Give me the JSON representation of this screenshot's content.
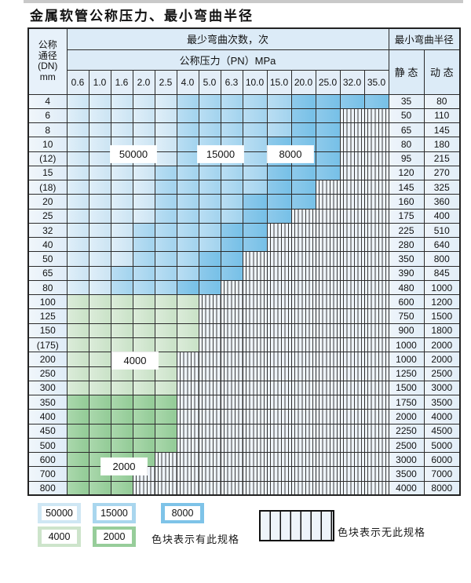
{
  "page": {
    "title": "金属软管公称压力、最小弯曲半径"
  },
  "table": {
    "corner": {
      "line1": "公称",
      "line2": "通径",
      "line3": "(DN)",
      "line4": "mm"
    },
    "bend_header": "最少弯曲次数，次",
    "pressure_header": "公称压力（PN）MPa",
    "radius_header": "最小弯曲半径",
    "static_label": "静 态",
    "dynamic_label": "动 态",
    "pressures": [
      "0.6",
      "1.0",
      "1.6",
      "2.0",
      "2.5",
      "4.0",
      "5.0",
      "6.3",
      "10.0",
      "15.0",
      "20.0",
      "25.0",
      "32.0",
      "35.0"
    ],
    "cell_legend_codes": {
      "L": "50000",
      "M": "15000",
      "D": "8000",
      "G": "4000",
      "H": "2000",
      "X": "no-spec-hatched"
    },
    "rows": [
      {
        "dn": "4",
        "cells": "LLLLLMMMMMDDDD",
        "static": "35",
        "dynamic": "80"
      },
      {
        "dn": "6",
        "cells": "LLLLLMMMMMDDXX",
        "static": "50",
        "dynamic": "110"
      },
      {
        "dn": "8",
        "cells": "LLLLLMMMMMDDXX",
        "static": "65",
        "dynamic": "145"
      },
      {
        "dn": "10",
        "cells": "LLLLLMMMMDDDXX",
        "static": "80",
        "dynamic": "180"
      },
      {
        "dn": "(12)",
        "cells": "LLLLLMMMMDDDXX",
        "static": "95",
        "dynamic": "215"
      },
      {
        "dn": "15",
        "cells": "LLLLMMMMMDDDXX",
        "static": "120",
        "dynamic": "270"
      },
      {
        "dn": "(18)",
        "cells": "LLLLMMMMMDDXXX",
        "static": "145",
        "dynamic": "325"
      },
      {
        "dn": "20",
        "cells": "LLLLMMMMDDDXXX",
        "static": "160",
        "dynamic": "360"
      },
      {
        "dn": "25",
        "cells": "LLLLMMMMDDXXXX",
        "static": "175",
        "dynamic": "400"
      },
      {
        "dn": "32",
        "cells": "LLLMMMMDDXXXXX",
        "static": "225",
        "dynamic": "510"
      },
      {
        "dn": "40",
        "cells": "LLLMMMMDDXXXXX",
        "static": "280",
        "dynamic": "640"
      },
      {
        "dn": "50",
        "cells": "LLLMMMDDXXXXXX",
        "static": "350",
        "dynamic": "800"
      },
      {
        "dn": "65",
        "cells": "LLMMMMDDXXXXXX",
        "static": "390",
        "dynamic": "845"
      },
      {
        "dn": "80",
        "cells": "LLMMMDDXXXXXXX",
        "static": "480",
        "dynamic": "1000"
      },
      {
        "dn": "100",
        "cells": "GGGGGGXXXXXXXX",
        "static": "600",
        "dynamic": "1200"
      },
      {
        "dn": "125",
        "cells": "GGGGGGXXXXXXXX",
        "static": "750",
        "dynamic": "1500"
      },
      {
        "dn": "150",
        "cells": "GGGGGGXXXXXXXX",
        "static": "900",
        "dynamic": "1800"
      },
      {
        "dn": "(175)",
        "cells": "GGGGGGXXXXXXXX",
        "static": "1000",
        "dynamic": "2000"
      },
      {
        "dn": "200",
        "cells": "GGGGGXXXXXXXXX",
        "static": "1000",
        "dynamic": "2000"
      },
      {
        "dn": "250",
        "cells": "GGGGGXXXXXXXXX",
        "static": "1250",
        "dynamic": "2500"
      },
      {
        "dn": "300",
        "cells": "GGGGGXXXXXXXXX",
        "static": "1500",
        "dynamic": "3000"
      },
      {
        "dn": "350",
        "cells": "HHHHHXXXXXXXXX",
        "static": "1750",
        "dynamic": "3500"
      },
      {
        "dn": "400",
        "cells": "HHHHHXXXXXXXXX",
        "static": "2000",
        "dynamic": "4000"
      },
      {
        "dn": "450",
        "cells": "HHHHHXXXXXXXXX",
        "static": "2250",
        "dynamic": "4500"
      },
      {
        "dn": "500",
        "cells": "HHHHHXXXXXXXXX",
        "static": "2500",
        "dynamic": "5000"
      },
      {
        "dn": "600",
        "cells": "HHHHXXXXXXXXXX",
        "static": "3000",
        "dynamic": "6000"
      },
      {
        "dn": "700",
        "cells": "HHHXXXXXXXXXXX",
        "static": "3500",
        "dynamic": "7000"
      },
      {
        "dn": "800",
        "cells": "HHHXXXXXXXXXXX",
        "static": "4000",
        "dynamic": "8000"
      }
    ]
  },
  "in_table_labels": {
    "b50000": "50000",
    "b15000": "15000",
    "b8000": "8000",
    "g4000": "4000",
    "g2000": "2000"
  },
  "legend": {
    "b50000": "50000",
    "b15000": "15000",
    "b8000": "8000",
    "g4000": "4000",
    "g2000": "2000",
    "has_spec_text": "色块表示有此规格",
    "no_spec_text": "色块表示无此规格"
  },
  "colors": {
    "blue_50000": "#cfe7f4",
    "blue_15000": "#a9d6ee",
    "blue_8000": "#7ec3e8",
    "green_4000": "#cde4cb",
    "green_2000": "#97cd9a",
    "hatch_bg": "#eef4fa",
    "grid_line": "#2b2b2b"
  }
}
